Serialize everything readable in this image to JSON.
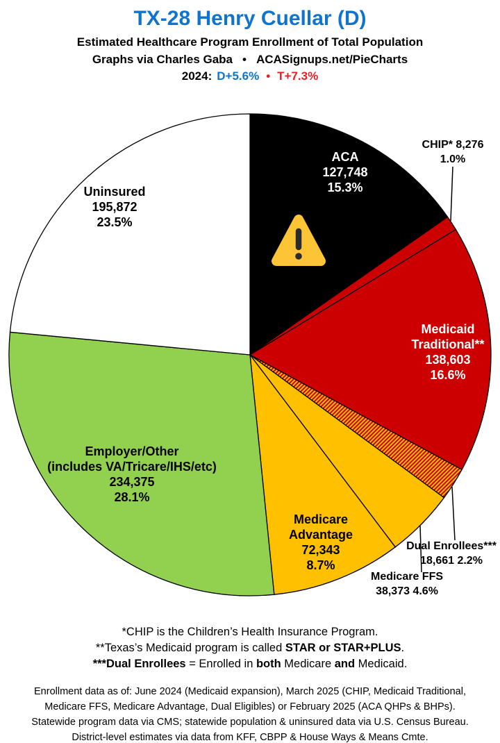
{
  "header": {
    "title": "TX-28 Henry Cuellar (D)",
    "subtitle": "Estimated Healthcare Program Enrollment of Total Population",
    "credit": {
      "author": "Graphs via Charles Gaba",
      "bullet": "•",
      "site": "ACASignups.net/PieCharts"
    },
    "election": {
      "year": "2024:",
      "dem": "D+5.6%",
      "bullet": "•",
      "rep": "T+7.3%"
    }
  },
  "colors": {
    "title_blue": "#0E74CE",
    "dem_blue": "#0E74CE",
    "rep_red": "#ED1C24",
    "aca_black": "#000000",
    "medicaid_red": "#CC0000",
    "medicare_gold": "#FFC000",
    "employer_green": "#92D050",
    "uninsured_white": "#FFFFFF"
  },
  "chart_data": {
    "type": "pie",
    "title": "Estimated Healthcare Program Enrollment of Total Population",
    "start_angle_deg": 0,
    "direction": "clockwise",
    "border_color": "#000000",
    "hatch": {
      "bg": "#FFC000",
      "stripe": "#CC0000"
    },
    "slices": [
      {
        "id": "aca",
        "name": "ACA",
        "value": 127748,
        "pct": 15.3,
        "color": "#000000",
        "display": [
          "ACA",
          "127,748",
          "15.3%"
        ]
      },
      {
        "id": "chip",
        "name": "CHIP*",
        "value": 8276,
        "pct": 1.0,
        "color": "#CC0000",
        "display": [
          "CHIP* 8,276",
          "1.0%"
        ]
      },
      {
        "id": "medicaid-traditional",
        "name": "Medicaid Traditional**",
        "value": 138603,
        "pct": 16.6,
        "color": "#CC0000",
        "display": [
          "Medicaid",
          "Traditional**",
          "138,603",
          "16.6%"
        ]
      },
      {
        "id": "dual-enrollees",
        "name": "Dual Enrollees***",
        "value": 18661,
        "pct": 2.2,
        "color": "#FFC000",
        "hatch": true,
        "display": [
          "Dual Enrollees***",
          "18,661 2.2%"
        ]
      },
      {
        "id": "medicare-ffs",
        "name": "Medicare FFS",
        "value": 38373,
        "pct": 4.6,
        "color": "#FFC000",
        "display": [
          "Medicare FFS",
          "38,373 4.6%"
        ]
      },
      {
        "id": "medicare-advantage",
        "name": "Medicare Advantage",
        "value": 72343,
        "pct": 8.7,
        "color": "#FFC000",
        "display": [
          "Medicare",
          "Advantage",
          "72,343",
          "8.7%"
        ]
      },
      {
        "id": "employer-other",
        "name": "Employer/Other (includes VA/Tricare/IHS/etc)",
        "value": 234375,
        "pct": 28.1,
        "color": "#92D050",
        "display": [
          "Employer/Other",
          "(includes VA/Tricare/IHS/etc)",
          "234,375",
          "28.1%"
        ]
      },
      {
        "id": "uninsured",
        "name": "Uninsured",
        "value": 195872,
        "pct": 23.5,
        "color": "#FFFFFF",
        "display": [
          "Uninsured",
          "195,872",
          "23.5%"
        ]
      }
    ]
  },
  "icons": {
    "warning": {
      "fill": "#FDC535",
      "mark": "#2B2B2B"
    }
  },
  "footnotes": {
    "line1": "*CHIP is the Children’s Health Insurance Program.",
    "line2_prefix": "**Texas’s Medicaid program is called ",
    "line2_bold": "STAR or STAR+PLUS",
    "line2_suffix": ".",
    "line3_bold1": "***Dual Enrollees",
    "line3_mid1": " = Enrolled in ",
    "line3_bold2": "both",
    "line3_mid2": " Medicare ",
    "line3_bold3": "and",
    "line3_suffix": " Medicaid."
  },
  "source": {
    "line1": "Enrollment data as of: June 2024 (Medicaid expansion), March 2025 (CHIP, Medicaid Traditional,",
    "line2": "Medicare FFS, Medicare Advantage, Dual Eligibles) or February 2025 (ACA QHPs & BHPs).",
    "line3": "Statewide program data via CMS; statewide population & uninsured data via U.S. Census Bureau.",
    "line4": "District-level estimates via data from KFF, CBPP & House Ways & Means Cmte."
  }
}
